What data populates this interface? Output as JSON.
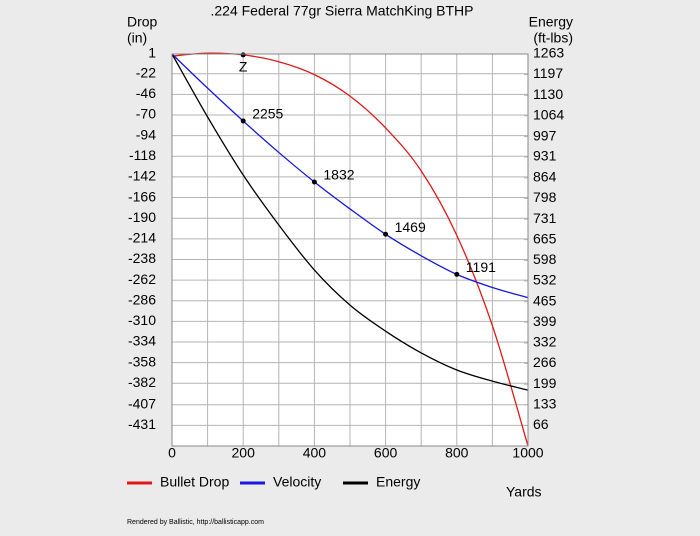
{
  "chart_data": {
    "type": "line",
    "title": ".224 Federal 77gr Sierra MatchKing BTHP",
    "y_label": [
      "Drop",
      "(in)"
    ],
    "y2_label": [
      "Energy",
      "(ft-lbs)"
    ],
    "x_label": "Yards",
    "footer": "Rendered by Ballistic, http://ballisticapp.com",
    "x": [
      0,
      100,
      200,
      300,
      400,
      500,
      600,
      700,
      800,
      900,
      1000
    ],
    "xlim": [
      0,
      1000
    ],
    "xticks": [
      0,
      200,
      400,
      600,
      800,
      1000
    ],
    "x_minor_ticks": [
      100,
      300,
      500,
      700,
      900
    ],
    "ylim": [
      -455,
      1
    ],
    "yticks": [
      1,
      -22,
      -46,
      -70,
      -94,
      -118,
      -142,
      -166,
      -190,
      -214,
      -238,
      -262,
      -286,
      -310,
      -334,
      -358,
      -382,
      -407,
      -431
    ],
    "y2lim": [
      0,
      1263
    ],
    "y2ticks": [
      1263,
      1197,
      1130,
      1064,
      997,
      931,
      864,
      798,
      731,
      665,
      598,
      532,
      465,
      399,
      332,
      266,
      199,
      133,
      66
    ],
    "grid": true,
    "series": [
      {
        "name": "Bullet Drop",
        "color": "#e01818",
        "values": [
          -1.5,
          2,
          0,
          -8,
          -23,
          -48,
          -85,
          -135,
          -210,
          -315,
          -455
        ]
      },
      {
        "name": "Velocity",
        "color": "#1818e0",
        "axis": "relative",
        "values": [
          2720,
          2483,
          2255,
          2037,
          1832,
          1645,
          1469,
          1320,
          1191,
          1100,
          1029
        ],
        "value_labels": [
          null,
          null,
          "2255",
          null,
          "1832",
          null,
          "1469",
          null,
          "1191",
          null,
          null
        ]
      },
      {
        "name": "Energy",
        "color": "#000000",
        "axis": "y2",
        "values": [
          1263,
          1060,
          873,
          712,
          567,
          454,
          370,
          300,
          245,
          209,
          180
        ]
      }
    ],
    "annotations": [
      {
        "text": "Z",
        "x": 200,
        "y": 0
      }
    ]
  }
}
